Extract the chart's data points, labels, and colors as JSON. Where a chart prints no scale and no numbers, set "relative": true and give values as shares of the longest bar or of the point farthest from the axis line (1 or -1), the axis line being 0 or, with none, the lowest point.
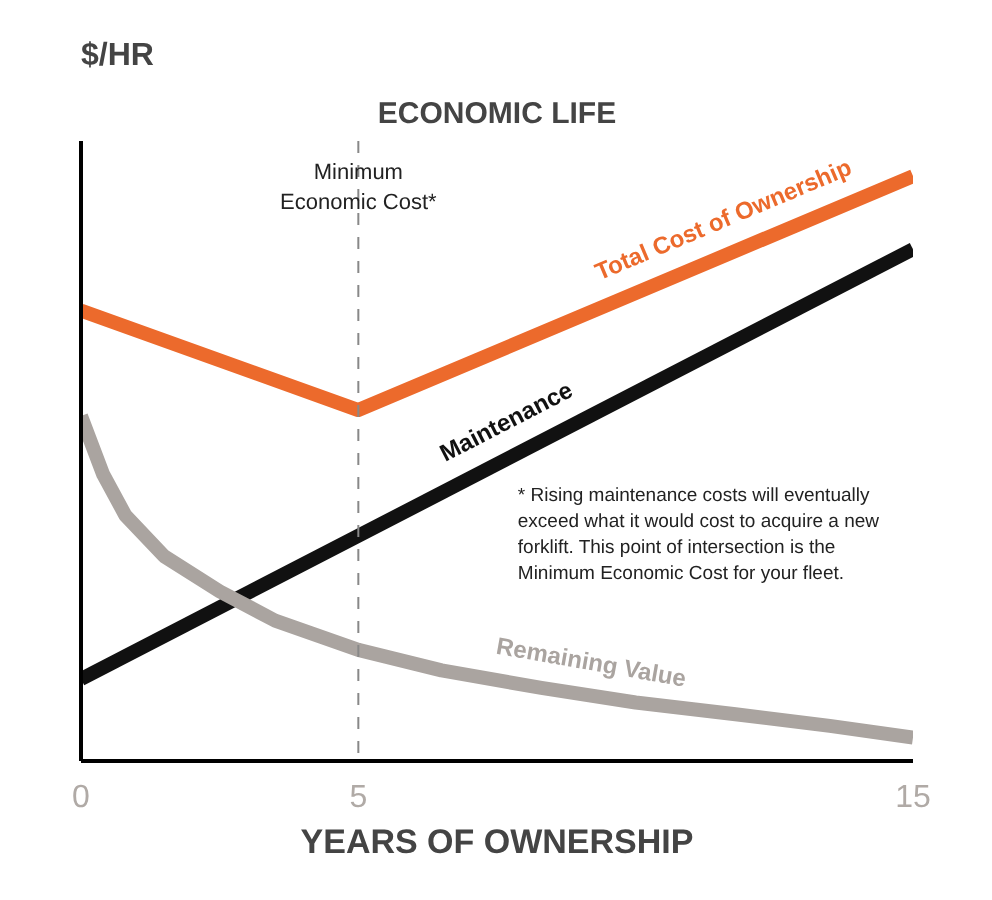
{
  "chart_data": {
    "type": "line",
    "relative": true,
    "title": "ECONOMIC LIFE",
    "ylabel": "$/HR",
    "xlabel": "YEARS OF OWNERSHIP",
    "xlim": [
      0,
      15
    ],
    "xticks": [
      0,
      5,
      15
    ],
    "grid": false,
    "marker": "none",
    "line_style": "solid",
    "series": [
      {
        "name": "Total Cost of Ownership",
        "color": "#ec6a2c",
        "x": [
          0,
          5,
          15
        ],
        "values": [
          0.77,
          0.6,
          1.0
        ]
      },
      {
        "name": "Maintenance",
        "color": "#111111",
        "x": [
          0,
          15
        ],
        "values": [
          0.14,
          0.875
        ]
      },
      {
        "name": "Remaining Value",
        "color": "#aaa4a0",
        "x": [
          0,
          0.4,
          0.8,
          1.5,
          2.5,
          3.5,
          5,
          6.5,
          8.3,
          10,
          11.8,
          13.5,
          15
        ],
        "values": [
          0.59,
          0.49,
          0.42,
          0.35,
          0.29,
          0.24,
          0.19,
          0.155,
          0.125,
          0.1,
          0.08,
          0.06,
          0.04
        ]
      }
    ],
    "ref_lines": [
      {
        "axis": "x",
        "value": 5,
        "label": "Minimum Economic Cost*",
        "color": "#888888",
        "line_style": "dashed"
      }
    ],
    "annotations": [
      "* Rising maintenance costs will eventually exceed what it would cost to acquire a new forklift. This point of intersection is the Minimum Economic Cost for your fleet."
    ]
  }
}
